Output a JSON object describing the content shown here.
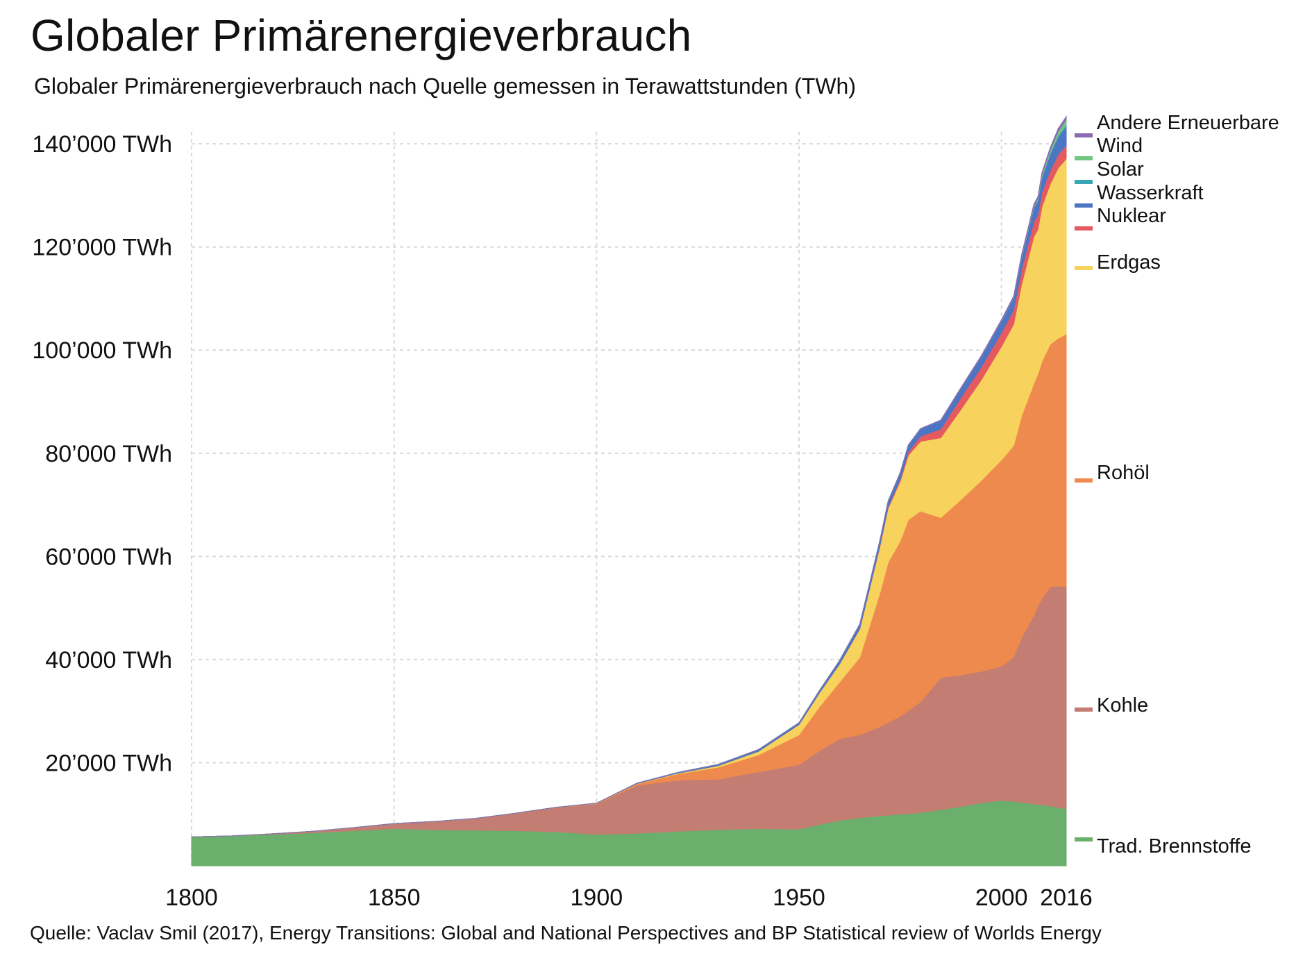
{
  "title": "Globaler Primärenergieverbrauch",
  "subtitle": "Globaler Primärenergieverbrauch nach Quelle gemessen in Terawattstunden (TWh)",
  "source": "Quelle: Vaclav Smil (2017), Energy Transitions: Global and National Perspectives and BP Statistical review of Worlds Energy",
  "chart_data": {
    "type": "area",
    "stacked": true,
    "x": [
      1800,
      1810,
      1820,
      1830,
      1840,
      1850,
      1860,
      1870,
      1880,
      1890,
      1900,
      1910,
      1920,
      1930,
      1940,
      1950,
      1955,
      1960,
      1965,
      1970,
      1972,
      1975,
      1977,
      1980,
      1985,
      1990,
      1995,
      2000,
      2003,
      2005,
      2008,
      2009,
      2010,
      2012,
      2014,
      2016
    ],
    "xticks": [
      1800,
      1850,
      1900,
      1950,
      2000,
      2016
    ],
    "xtick_labels": [
      "1800",
      "1850",
      "1900",
      "1950",
      "2000",
      "2016"
    ],
    "xlim": [
      1800,
      2016
    ],
    "yticks": [
      20000,
      40000,
      60000,
      80000,
      100000,
      120000,
      140000
    ],
    "ytick_labels": [
      "20’000 TWh",
      "40’000 TWh",
      "60’000 TWh",
      "80’000 TWh",
      "100’000 TWh",
      "120’000 TWh",
      "140’000 TWh"
    ],
    "ylim": [
      0,
      145000
    ],
    "grid": true,
    "legend_position": "right, labels at series ends",
    "series": [
      {
        "name": "Trad. Brennstoffe",
        "color": "#6aaf6c",
        "values": [
          5600,
          5800,
          6100,
          6400,
          6800,
          7200,
          7000,
          6900,
          6800,
          6600,
          6100,
          6300,
          6700,
          7000,
          7200,
          7100,
          8000,
          8800,
          9300,
          9700,
          9800,
          10000,
          10100,
          10300,
          10900,
          11500,
          12200,
          12700,
          12500,
          12300,
          12000,
          11900,
          11800,
          11600,
          11300,
          11100
        ]
      },
      {
        "name": "Kohle",
        "color": "#c37d72",
        "values": [
          0,
          0,
          100,
          300,
          600,
          1000,
          1600,
          2300,
          3400,
          4700,
          5900,
          9300,
          9900,
          9800,
          11000,
          12500,
          14300,
          15800,
          16100,
          17300,
          18000,
          19000,
          20000,
          21500,
          25600,
          25500,
          25500,
          26000,
          28000,
          32000,
          36500,
          38500,
          40000,
          42500,
          43000,
          43000
        ]
      },
      {
        "name": "Rohöl",
        "color": "#ef8a4e",
        "values": [
          0,
          0,
          0,
          0,
          0,
          0,
          0,
          0,
          10,
          30,
          100,
          300,
          1200,
          2300,
          3300,
          5800,
          8500,
          11000,
          15000,
          26000,
          31000,
          34000,
          37000,
          37000,
          31000,
          34000,
          37000,
          40000,
          41000,
          43000,
          45000,
          45000,
          46000,
          47000,
          48000,
          49000
        ]
      },
      {
        "name": "Erdgas",
        "color": "#f7d25c",
        "values": [
          0,
          0,
          0,
          0,
          0,
          0,
          0,
          0,
          0,
          0,
          20,
          60,
          150,
          300,
          700,
          2000,
          2700,
          3500,
          5500,
          9000,
          10500,
          11500,
          12500,
          13500,
          15500,
          17500,
          19500,
          22000,
          23500,
          25500,
          28500,
          28000,
          30000,
          31000,
          33000,
          34000
        ]
      },
      {
        "name": "Nuklear",
        "color": "#e45a5f",
        "values": [
          0,
          0,
          0,
          0,
          0,
          0,
          0,
          0,
          0,
          0,
          0,
          0,
          0,
          0,
          0,
          0,
          0,
          0,
          60,
          150,
          250,
          500,
          700,
          1000,
          1700,
          2300,
          2500,
          2700,
          2800,
          2900,
          2900,
          2800,
          2800,
          2600,
          2600,
          2600
        ]
      },
      {
        "name": "Wasserkraft",
        "color": "#4c76c4",
        "values": [
          0,
          0,
          0,
          0,
          0,
          0,
          0,
          0,
          0,
          0,
          30,
          80,
          150,
          250,
          350,
          350,
          450,
          700,
          900,
          1100,
          1150,
          1250,
          1300,
          1450,
          1650,
          1800,
          2000,
          2200,
          2300,
          2400,
          2700,
          2800,
          2900,
          3200,
          3400,
          3600
        ]
      },
      {
        "name": "Solar",
        "color": "#3aa6b5",
        "values": [
          0,
          0,
          0,
          0,
          0,
          0,
          0,
          0,
          0,
          0,
          0,
          0,
          0,
          0,
          0,
          0,
          0,
          0,
          0,
          0,
          0,
          0,
          0,
          0,
          0,
          0,
          0,
          0,
          0,
          0,
          20,
          30,
          50,
          150,
          250,
          400
        ]
      },
      {
        "name": "Wind",
        "color": "#6fc782",
        "values": [
          0,
          0,
          0,
          0,
          0,
          0,
          0,
          0,
          0,
          0,
          0,
          0,
          0,
          0,
          0,
          0,
          0,
          0,
          0,
          0,
          0,
          0,
          0,
          0,
          0,
          0,
          20,
          60,
          90,
          150,
          280,
          350,
          450,
          650,
          850,
          1000
        ]
      },
      {
        "name": "Andere Erneuerbare",
        "color": "#8c6bb1",
        "values": [
          0,
          0,
          0,
          0,
          0,
          0,
          0,
          0,
          0,
          0,
          0,
          0,
          0,
          0,
          0,
          0,
          0,
          0,
          0,
          0,
          0,
          0,
          0,
          50,
          100,
          150,
          200,
          250,
          300,
          350,
          400,
          420,
          450,
          500,
          550,
          600
        ]
      }
    ],
    "legend_order": [
      "Andere Erneuerbare",
      "Wind",
      "Solar",
      "Wasserkraft",
      "Nuklear",
      "Erdgas",
      "Rohöl",
      "Kohle",
      "Trad. Brennstoffe"
    ]
  }
}
